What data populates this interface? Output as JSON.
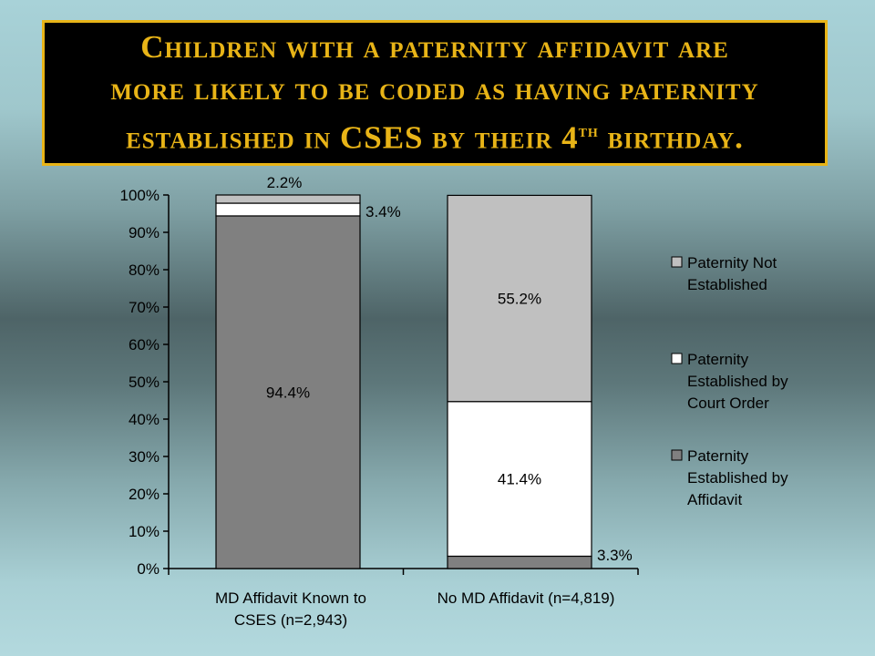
{
  "title": {
    "line1": "Children with a paternity affidavit are",
    "line2": "more likely to be coded as having paternity",
    "line3_pre": "established in CSES by their 4",
    "line3_sup": "th",
    "line3_post": " birthday."
  },
  "chart_data": {
    "type": "bar",
    "stacked": true,
    "categories": [
      "MD Affidavit Known to CSES (n=2,943)",
      "No MD Affidavit (n=4,819)"
    ],
    "category_lines": [
      [
        "MD Affidavit Known to",
        "CSES (n=2,943)"
      ],
      [
        "No MD Affidavit (n=4,819)"
      ]
    ],
    "series": [
      {
        "name": "Paternity Established by Affidavit",
        "values": [
          94.4,
          3.3
        ],
        "labels": [
          "94.4%",
          "3.3%"
        ],
        "color": "#808080"
      },
      {
        "name": "Paternity Established by Court Order",
        "values": [
          3.4,
          41.4
        ],
        "labels": [
          "3.4%",
          "41.4%"
        ],
        "color": "#ffffff"
      },
      {
        "name": "Paternity Not Established",
        "values": [
          2.2,
          55.2
        ],
        "labels": [
          "2.2%",
          "55.2%"
        ],
        "color": "#c0c0c0"
      }
    ],
    "legend_items": [
      {
        "lines": [
          "Paternity Not",
          "Established"
        ],
        "color": "#c0c0c0"
      },
      {
        "lines": [
          "Paternity",
          "Established by",
          "Court Order"
        ],
        "color": "#ffffff"
      },
      {
        "lines": [
          "Paternity",
          "Established by",
          "Affidavit"
        ],
        "color": "#808080"
      }
    ],
    "ylim": [
      0,
      100
    ],
    "y_ticks": [
      "0%",
      "10%",
      "20%",
      "30%",
      "40%",
      "50%",
      "60%",
      "70%",
      "80%",
      "90%",
      "100%"
    ],
    "legend_position": "right",
    "grid": false
  }
}
